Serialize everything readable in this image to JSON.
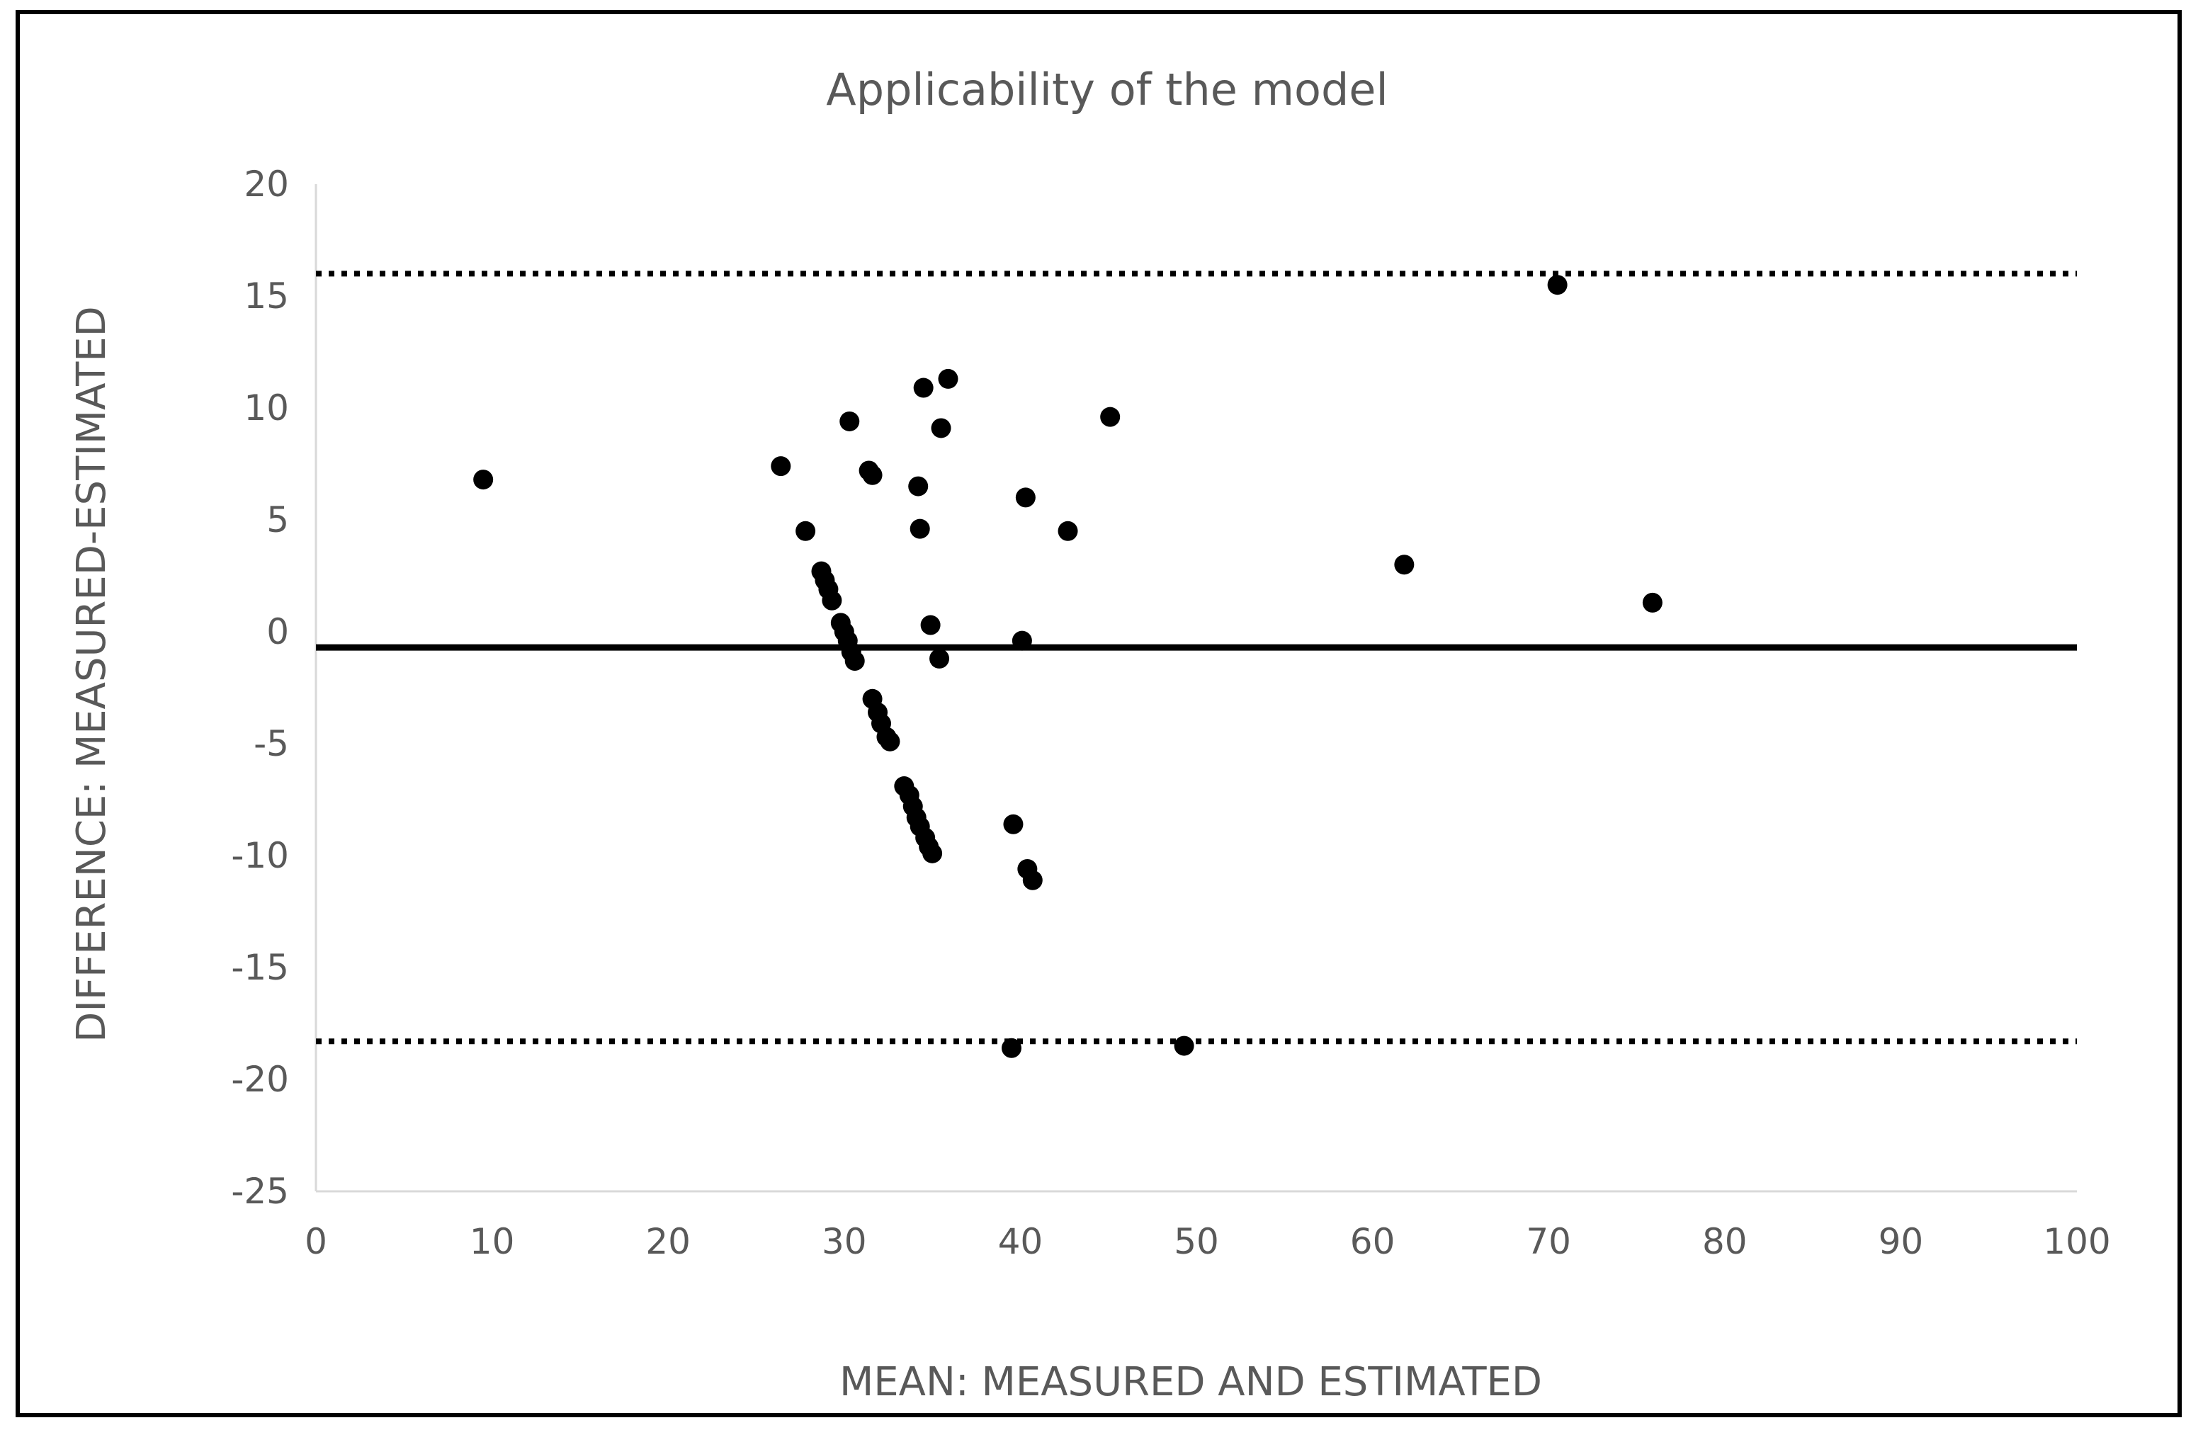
{
  "chart_data": {
    "type": "scatter",
    "title": "Applicability of the model",
    "xlabel": "MEAN: MEASURED AND ESTIMATED",
    "ylabel": "DIFFERENCE: MEASURED-ESTIMATED",
    "xlim": [
      0,
      100
    ],
    "ylim": [
      -25,
      20
    ],
    "x_ticks": [
      "0",
      "10",
      "20",
      "30",
      "40",
      "50",
      "60",
      "70",
      "80",
      "90",
      "100"
    ],
    "y_ticks": [
      "20",
      "15",
      "10",
      "5",
      "0",
      "-5",
      "-10",
      "-15",
      "-20",
      "-25"
    ],
    "x_tick_values": [
      0,
      10,
      20,
      30,
      40,
      50,
      60,
      70,
      80,
      90,
      100
    ],
    "y_tick_values": [
      20,
      15,
      10,
      5,
      0,
      -5,
      -10,
      -15,
      -20,
      -25
    ],
    "grid": false,
    "legend": "none",
    "reference_lines": [
      {
        "value": 16.0,
        "style": "dotted"
      },
      {
        "value": -0.7,
        "style": "solid"
      },
      {
        "value": -18.3,
        "style": "dotted"
      }
    ],
    "points": [
      {
        "x": 9.5,
        "y": 6.8
      },
      {
        "x": 26.4,
        "y": 7.4
      },
      {
        "x": 27.8,
        "y": 4.5
      },
      {
        "x": 28.7,
        "y": 2.7
      },
      {
        "x": 28.9,
        "y": 2.3
      },
      {
        "x": 29.1,
        "y": 1.9
      },
      {
        "x": 29.3,
        "y": 1.4
      },
      {
        "x": 29.8,
        "y": 0.4
      },
      {
        "x": 30.0,
        "y": 0.0
      },
      {
        "x": 30.2,
        "y": -0.4
      },
      {
        "x": 30.4,
        "y": -0.9
      },
      {
        "x": 30.6,
        "y": -1.3
      },
      {
        "x": 30.3,
        "y": 9.4
      },
      {
        "x": 31.4,
        "y": 7.2
      },
      {
        "x": 31.6,
        "y": 7.0
      },
      {
        "x": 31.6,
        "y": -3.0
      },
      {
        "x": 31.9,
        "y": -3.6
      },
      {
        "x": 32.1,
        "y": -4.1
      },
      {
        "x": 32.4,
        "y": -4.7
      },
      {
        "x": 32.6,
        "y": -4.9
      },
      {
        "x": 33.4,
        "y": -6.9
      },
      {
        "x": 33.7,
        "y": -7.3
      },
      {
        "x": 33.9,
        "y": -7.8
      },
      {
        "x": 34.1,
        "y": -8.3
      },
      {
        "x": 34.3,
        "y": -8.7
      },
      {
        "x": 34.6,
        "y": -9.2
      },
      {
        "x": 34.8,
        "y": -9.6
      },
      {
        "x": 35.0,
        "y": -9.9
      },
      {
        "x": 34.2,
        "y": 6.5
      },
      {
        "x": 34.3,
        "y": 4.6
      },
      {
        "x": 34.5,
        "y": 10.9
      },
      {
        "x": 34.9,
        "y": 0.3
      },
      {
        "x": 35.4,
        "y": -1.2
      },
      {
        "x": 35.5,
        "y": 9.1
      },
      {
        "x": 35.9,
        "y": 11.3
      },
      {
        "x": 39.6,
        "y": -8.6
      },
      {
        "x": 39.5,
        "y": -18.6
      },
      {
        "x": 40.1,
        "y": -0.4
      },
      {
        "x": 40.3,
        "y": 6.0
      },
      {
        "x": 40.4,
        "y": -10.6
      },
      {
        "x": 40.7,
        "y": -11.1
      },
      {
        "x": 42.7,
        "y": 4.5
      },
      {
        "x": 45.1,
        "y": 9.6
      },
      {
        "x": 49.3,
        "y": -18.5
      },
      {
        "x": 61.8,
        "y": 3.0
      },
      {
        "x": 70.5,
        "y": 15.5
      },
      {
        "x": 75.9,
        "y": 1.3
      }
    ]
  }
}
